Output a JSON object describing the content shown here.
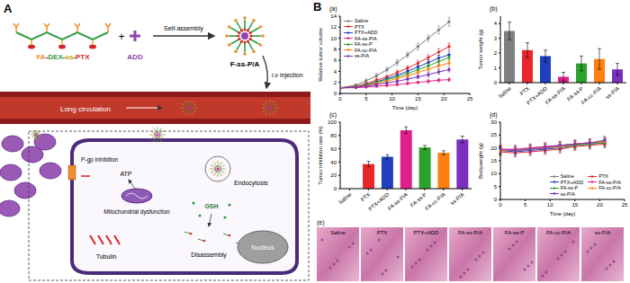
{
  "panel_labels": [
    "A",
    "B"
  ],
  "diagram": {
    "polymer": {
      "label": "FA-DEX-ss-PTX",
      "colors": [
        "#f28c28",
        "#2e9e44",
        "#c9a000",
        "#d62728"
      ]
    },
    "additive": "ADD",
    "step": "Self-assembly",
    "micelle": "F-ss-P/A",
    "route": "i.v injection",
    "vessel": "Long circulation",
    "cell": {
      "efflux": "P-gp inhibition",
      "energy": "ATP",
      "mitochondria": "Mitochondrial dysfunction",
      "uptake": "Endocytosis",
      "trigger": "GSH",
      "release": "Disassembly",
      "target": "Tubulin",
      "nucleus": "Nucleus"
    }
  },
  "chart_data": [
    {
      "type": "line",
      "title": "(a)",
      "x_label": "Time (day)",
      "y_label": "Relative tumor volume",
      "x": [
        0,
        3,
        5,
        7,
        9,
        11,
        13,
        15,
        17,
        19,
        21
      ],
      "xlim": [
        0,
        25
      ],
      "xticks": [
        0,
        5,
        10,
        15,
        20,
        25
      ],
      "ylim": [
        0,
        14
      ],
      "yticks": [
        0,
        2,
        4,
        6,
        8,
        10,
        12,
        14
      ],
      "legend": "upper left",
      "marker": "circle",
      "series": [
        {
          "name": "Saline",
          "color": "#7f7f7f",
          "values": [
            1,
            1.5,
            2.3,
            3.2,
            4.3,
            5.6,
            7,
            8.5,
            10,
            11.5,
            13
          ],
          "errors": [
            0,
            0.2,
            0.3,
            0.4,
            0.4,
            0.5,
            0.5,
            0.6,
            0.6,
            0.7,
            0.8
          ]
        },
        {
          "name": "PTX",
          "color": "#e8272b",
          "values": [
            1,
            1.3,
            1.8,
            2.4,
            3,
            3.8,
            4.6,
            5.5,
            6.5,
            7.5,
            8.5
          ],
          "errors": [
            0,
            0.1,
            0.2,
            0.3,
            0.3,
            0.4,
            0.4,
            0.5,
            0.5,
            0.6,
            0.6
          ]
        },
        {
          "name": "PTX+ADD",
          "color": "#1f3fbf",
          "values": [
            1,
            1.2,
            1.6,
            2.1,
            2.7,
            3.3,
            4,
            4.8,
            5.6,
            6.4,
            7
          ],
          "errors": [
            0,
            0.1,
            0.2,
            0.2,
            0.3,
            0.3,
            0.4,
            0.4,
            0.5,
            0.5,
            0.6
          ]
        },
        {
          "name": "FA-ss-P/A",
          "color": "#e0218a",
          "values": [
            1,
            1.05,
            1.15,
            1.3,
            1.45,
            1.6,
            1.8,
            2,
            2.2,
            2.4,
            2.5
          ],
          "errors": [
            0,
            0.1,
            0.1,
            0.1,
            0.2,
            0.2,
            0.2,
            0.2,
            0.3,
            0.3,
            0.3
          ]
        },
        {
          "name": "FA-ss-P",
          "color": "#2ca02c",
          "values": [
            1,
            1.2,
            1.5,
            2,
            2.5,
            3,
            3.6,
            4.3,
            5,
            5.8,
            6.5
          ],
          "errors": [
            0,
            0.1,
            0.2,
            0.2,
            0.3,
            0.3,
            0.4,
            0.4,
            0.5,
            0.5,
            0.5
          ]
        },
        {
          "name": "FA-cc-P/A",
          "color": "#ff7f0e",
          "values": [
            1,
            1.15,
            1.4,
            1.8,
            2.2,
            2.7,
            3.2,
            3.8,
            4.4,
            5,
            5.5
          ],
          "errors": [
            0,
            0.1,
            0.2,
            0.2,
            0.3,
            0.3,
            0.3,
            0.4,
            0.4,
            0.5,
            0.5
          ]
        },
        {
          "name": "ss-P/A",
          "color": "#7b2fbe",
          "values": [
            1,
            1.1,
            1.3,
            1.6,
            1.9,
            2.2,
            2.6,
            3,
            3.4,
            3.9,
            4.3
          ],
          "errors": [
            0,
            0.1,
            0.1,
            0.2,
            0.2,
            0.3,
            0.3,
            0.3,
            0.4,
            0.4,
            0.4
          ]
        }
      ]
    },
    {
      "type": "bar",
      "title": "(b)",
      "y_label": "Tumor weight (g)",
      "categories": [
        "Saline",
        "PTX",
        "PTX+ADD",
        "FA-ss-P/A",
        "FA-ss-P",
        "FA-cc-P/A",
        "ss-P/A"
      ],
      "values": [
        3.5,
        2.2,
        1.8,
        0.4,
        1.3,
        1.6,
        0.9
      ],
      "errors": [
        0.6,
        0.5,
        0.4,
        0.3,
        0.5,
        0.7,
        0.4
      ],
      "colors": [
        "#7f7f7f",
        "#e8272b",
        "#1f3fbf",
        "#e0218a",
        "#2ca02c",
        "#ff7f0e",
        "#7b2fbe"
      ],
      "ylim": [
        0,
        4.5
      ],
      "yticks": [
        0,
        1,
        2,
        3,
        4
      ]
    },
    {
      "type": "bar",
      "title": "(c)",
      "y_label": "Tumor inhibition rate (%)",
      "categories": [
        "Saline",
        "PTX",
        "PTX+ADD",
        "FA-ss-P/A",
        "FA-ss-P",
        "FA-cc-P/A",
        "ss-P/A"
      ],
      "values": [
        0,
        37,
        48,
        88,
        62,
        54,
        74
      ],
      "errors": [
        0,
        4,
        3,
        5,
        3,
        3,
        5
      ],
      "colors": [
        "#7f7f7f",
        "#e8272b",
        "#1f3fbf",
        "#e0218a",
        "#2ca02c",
        "#ff7f0e",
        "#7b2fbe"
      ],
      "ylim": [
        0,
        100
      ],
      "yticks": [
        0,
        20,
        40,
        60,
        80,
        100
      ]
    },
    {
      "type": "line",
      "title": "(d)",
      "x_label": "Time (day)",
      "y_label": "Bodyweight (g)",
      "x": [
        0,
        3,
        6,
        9,
        12,
        15,
        18,
        21
      ],
      "xlim": [
        0,
        25
      ],
      "xticks": [
        0,
        5,
        10,
        15,
        20,
        25
      ],
      "ylim": [
        0,
        30
      ],
      "yticks": [
        0,
        5,
        10,
        15,
        20,
        25,
        30
      ],
      "legend": "lower right",
      "marker": "circle",
      "series": [
        {
          "name": "Saline",
          "color": "#7f7f7f",
          "values": [
            19,
            19.5,
            20,
            20.5,
            21,
            21.5,
            22,
            22.5
          ],
          "errors": [
            1.5,
            1.5,
            1.5,
            1.5,
            1.5,
            1.5,
            1.5,
            1.5
          ]
        },
        {
          "name": "PTX",
          "color": "#e8272b",
          "values": [
            18.5,
            18,
            18.5,
            19,
            19.5,
            20.5,
            21,
            21.5
          ],
          "errors": [
            1.5,
            1.5,
            1.5,
            1.5,
            1.5,
            1.5,
            1.5,
            1.5
          ]
        },
        {
          "name": "PTX+ADD",
          "color": "#1f3fbf",
          "values": [
            19,
            18.5,
            19,
            19.5,
            20,
            21,
            21.5,
            22
          ],
          "errors": [
            1.5,
            1.5,
            1.5,
            1.5,
            1.5,
            1.5,
            1.5,
            1.5
          ]
        },
        {
          "name": "FA-ss-P/A",
          "color": "#e0218a",
          "values": [
            19.5,
            19.5,
            20,
            20.5,
            21,
            21.5,
            22,
            22.5
          ],
          "errors": [
            1.5,
            1.5,
            1.5,
            1.5,
            1.5,
            1.5,
            1.5,
            1.5
          ]
        },
        {
          "name": "FA-ss-P",
          "color": "#2ca02c",
          "values": [
            19,
            19,
            19.5,
            20,
            20.5,
            21,
            21.5,
            22
          ],
          "errors": [
            1.5,
            1.5,
            1.5,
            1.5,
            1.5,
            1.5,
            1.5,
            1.5
          ]
        },
        {
          "name": "FA-cc-P/A",
          "color": "#ff7f0e",
          "values": [
            19,
            19,
            19.5,
            20,
            20.5,
            21.5,
            22,
            22.5
          ],
          "errors": [
            1.5,
            1.5,
            1.5,
            1.5,
            1.5,
            1.5,
            1.5,
            1.5
          ]
        },
        {
          "name": "ss-P/A",
          "color": "#7b2fbe",
          "values": [
            19.5,
            19,
            19.5,
            20,
            21,
            21.5,
            22,
            23
          ],
          "errors": [
            1.5,
            1.5,
            1.5,
            1.5,
            1.5,
            1.5,
            1.5,
            1.5
          ]
        }
      ]
    }
  ],
  "images": {
    "title": "(e)",
    "labels": [
      "Saline",
      "PTX",
      "PTX+ADD",
      "FA-ss-P/A",
      "FA-ss-P",
      "FA-cc-P/A",
      "ss-P/A"
    ]
  }
}
